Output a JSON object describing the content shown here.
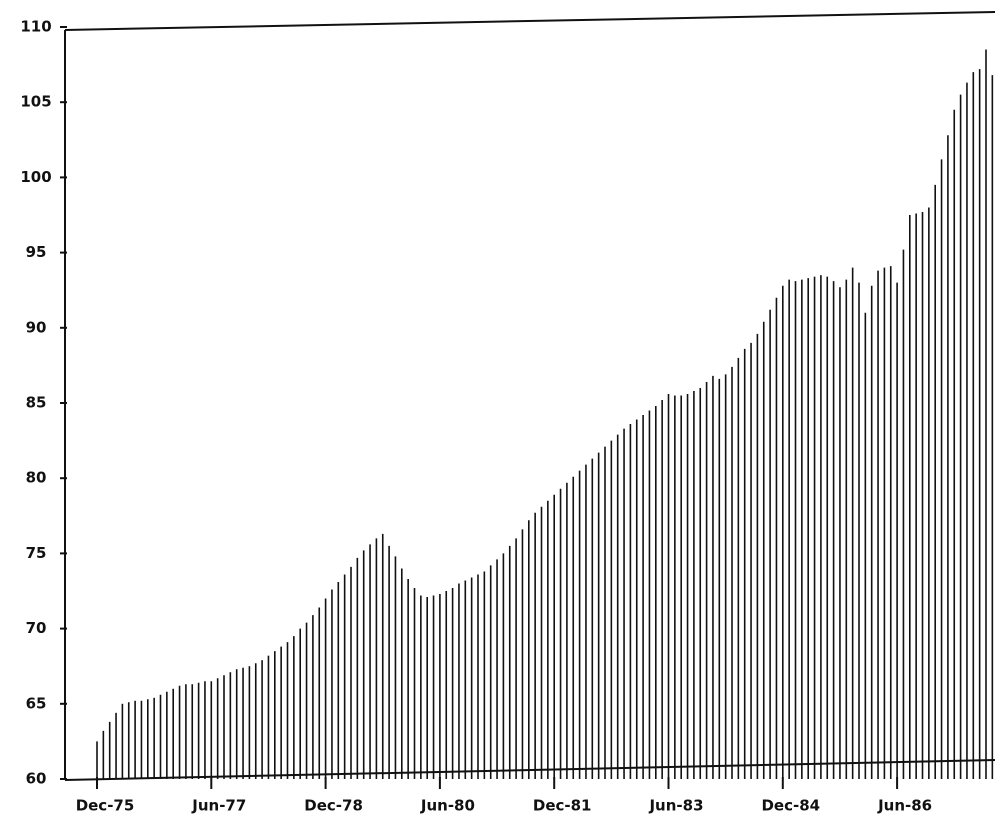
{
  "chart_data": {
    "type": "bar",
    "color": "#111111",
    "ylim": [
      60,
      110
    ],
    "yticks": [
      60,
      65,
      70,
      75,
      80,
      85,
      90,
      95,
      100,
      105,
      110
    ],
    "categories": [
      "Dec-75",
      null,
      null,
      null,
      null,
      null,
      null,
      null,
      null,
      null,
      null,
      null,
      null,
      null,
      null,
      null,
      null,
      null,
      "Jun-77",
      null,
      null,
      null,
      null,
      null,
      null,
      null,
      null,
      null,
      null,
      null,
      null,
      null,
      null,
      null,
      null,
      null,
      "Dec-78",
      null,
      null,
      null,
      null,
      null,
      null,
      null,
      null,
      null,
      null,
      null,
      null,
      null,
      null,
      null,
      null,
      null,
      "Jun-80",
      null,
      null,
      null,
      null,
      null,
      null,
      null,
      null,
      null,
      null,
      null,
      null,
      null,
      null,
      null,
      null,
      null,
      "Dec-81",
      null,
      null,
      null,
      null,
      null,
      null,
      null,
      null,
      null,
      null,
      null,
      null,
      null,
      null,
      null,
      null,
      null,
      "Jun-83",
      null,
      null,
      null,
      null,
      null,
      null,
      null,
      null,
      null,
      null,
      null,
      null,
      null,
      null,
      null,
      null,
      null,
      "Dec-84",
      null,
      null,
      null,
      null,
      null,
      null,
      null,
      null,
      null,
      null,
      null,
      null,
      null,
      null,
      null,
      null,
      null,
      "Jun-86",
      null,
      null,
      null,
      null,
      null,
      null,
      null,
      null,
      null,
      null,
      null,
      null,
      null,
      null,
      null
    ],
    "values": [
      62.5,
      63.2,
      63.8,
      64.4,
      65.0,
      65.1,
      65.2,
      65.2,
      65.3,
      65.4,
      65.6,
      65.8,
      66.0,
      66.2,
      66.3,
      66.3,
      66.4,
      66.5,
      66.5,
      66.7,
      66.9,
      67.1,
      67.3,
      67.4,
      67.5,
      67.7,
      67.9,
      68.2,
      68.5,
      68.8,
      69.1,
      69.5,
      70.0,
      70.4,
      70.9,
      71.4,
      72.0,
      72.6,
      73.1,
      73.6,
      74.1,
      74.7,
      75.2,
      75.6,
      76.0,
      76.3,
      75.5,
      74.8,
      74.0,
      73.3,
      72.7,
      72.2,
      72.1,
      72.2,
      72.3,
      72.5,
      72.7,
      73.0,
      73.2,
      73.4,
      73.6,
      73.8,
      74.2,
      74.6,
      75.0,
      75.5,
      76.0,
      76.6,
      77.2,
      77.7,
      78.1,
      78.5,
      78.9,
      79.3,
      79.7,
      80.1,
      80.5,
      80.9,
      81.3,
      81.7,
      82.1,
      82.5,
      82.9,
      83.3,
      83.6,
      83.9,
      84.2,
      84.5,
      84.8,
      85.2,
      85.6,
      85.5,
      85.5,
      85.6,
      85.8,
      86.0,
      86.4,
      86.8,
      86.6,
      86.9,
      87.4,
      88.0,
      88.6,
      89.0,
      89.6,
      90.4,
      91.2,
      92.0,
      92.8,
      93.2,
      93.1,
      93.2,
      93.3,
      93.4,
      93.5,
      93.4,
      93.1,
      92.7,
      93.2,
      94.0,
      93.0,
      91.0,
      92.8,
      93.8,
      94.0,
      94.1,
      93.0,
      95.2,
      97.5,
      97.6,
      97.7,
      98.0,
      99.5,
      101.2,
      102.8,
      104.5,
      105.5,
      106.3,
      107.0,
      107.2,
      108.5,
      106.8
    ]
  }
}
